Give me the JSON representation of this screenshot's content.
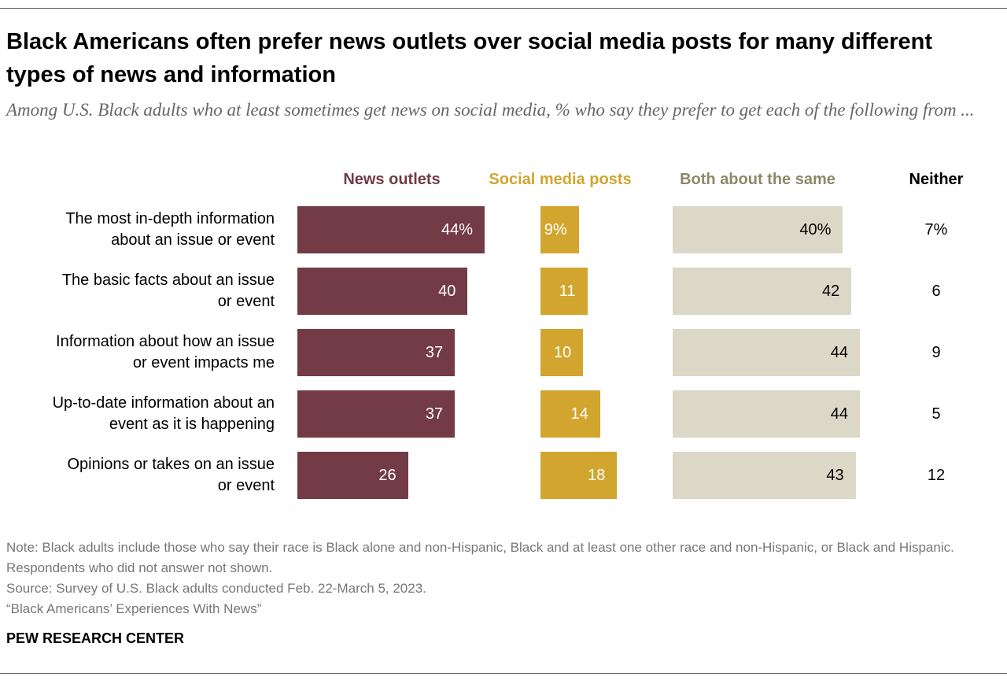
{
  "chart_data": {
    "type": "bar",
    "title": "Black Americans often prefer news outlets over social media posts for many different types of news and information",
    "subtitle": "Among U.S. Black adults who at least sometimes get news on social media, % who say they prefer to get each of the following from ...",
    "categories": [
      "The most in-depth information about an issue or event",
      "The basic facts about an issue or event",
      "Information about how an issue or event impacts me",
      "Up-to-date information about an event as it is happening",
      "Opinions or takes on an issue or event"
    ],
    "category_lines": [
      [
        "The most in-depth information",
        "about an issue or event"
      ],
      [
        "The basic facts about an issue",
        "or event"
      ],
      [
        "Information about how an issue",
        "or event impacts me"
      ],
      [
        "Up-to-date information about an",
        "event as it is happening"
      ],
      [
        "Opinions or takes on an issue",
        "or event"
      ]
    ],
    "series": [
      {
        "name": "News outlets",
        "color": "#733b46",
        "text_color": "#ffffff",
        "values": [
          44,
          40,
          37,
          37,
          26
        ],
        "labels": [
          "44%",
          "40",
          "37",
          "37",
          "26"
        ]
      },
      {
        "name": "Social media posts",
        "color": "#d2a52f",
        "text_color": "#ffffff",
        "values": [
          9,
          11,
          10,
          14,
          18
        ],
        "labels": [
          "9%",
          "11",
          "10",
          "14",
          "18"
        ]
      },
      {
        "name": "Both about the same",
        "color": "#dcd8c8",
        "header_color": "#8e8868",
        "text_color": "#000000",
        "values": [
          40,
          42,
          44,
          44,
          43
        ],
        "labels": [
          "40%",
          "42",
          "44",
          "44",
          "43"
        ]
      },
      {
        "name": "Neither",
        "color": null,
        "text_color": "#000000",
        "values": [
          7,
          6,
          9,
          5,
          12
        ],
        "labels": [
          "7%",
          "6",
          "9",
          "5",
          "12"
        ]
      }
    ],
    "unit": "%"
  },
  "notes": [
    "Note: Black adults include those who say their race is Black alone and non-Hispanic, Black and at least one other race and non-Hispanic, or Black and Hispanic. Respondents who did not answer not shown.",
    "Source: Survey of U.S. Black adults conducted Feb. 22-March 5, 2023.",
    "“Black Americans’ Experiences With News”"
  ],
  "brand": "PEW RESEARCH CENTER"
}
